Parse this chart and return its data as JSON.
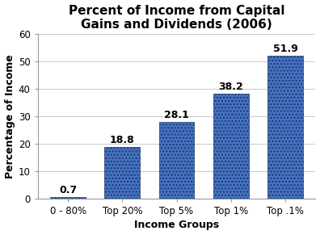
{
  "title": "Percent of Income from Capital\nGains and Dividends (2006)",
  "categories": [
    "0 - 80%",
    "Top 20%",
    "Top 5%",
    "Top 1%",
    "Top .1%"
  ],
  "values": [
    0.7,
    18.8,
    28.1,
    38.2,
    51.9
  ],
  "bar_color": "#4472C4",
  "bar_edgecolor": "#1F3864",
  "xlabel": "Income Groups",
  "ylabel": "Percentage of Income",
  "ylim": [
    0,
    60
  ],
  "yticks": [
    0,
    10,
    20,
    30,
    40,
    50,
    60
  ],
  "title_fontsize": 11,
  "label_fontsize": 9,
  "tick_fontsize": 8.5,
  "value_label_fontsize": 9,
  "bar_labels": [
    "0.7",
    "18.8",
    "28.1",
    "38.2",
    "51.9"
  ],
  "background_color": "#ffffff",
  "grid_color": "#c0c0c0"
}
